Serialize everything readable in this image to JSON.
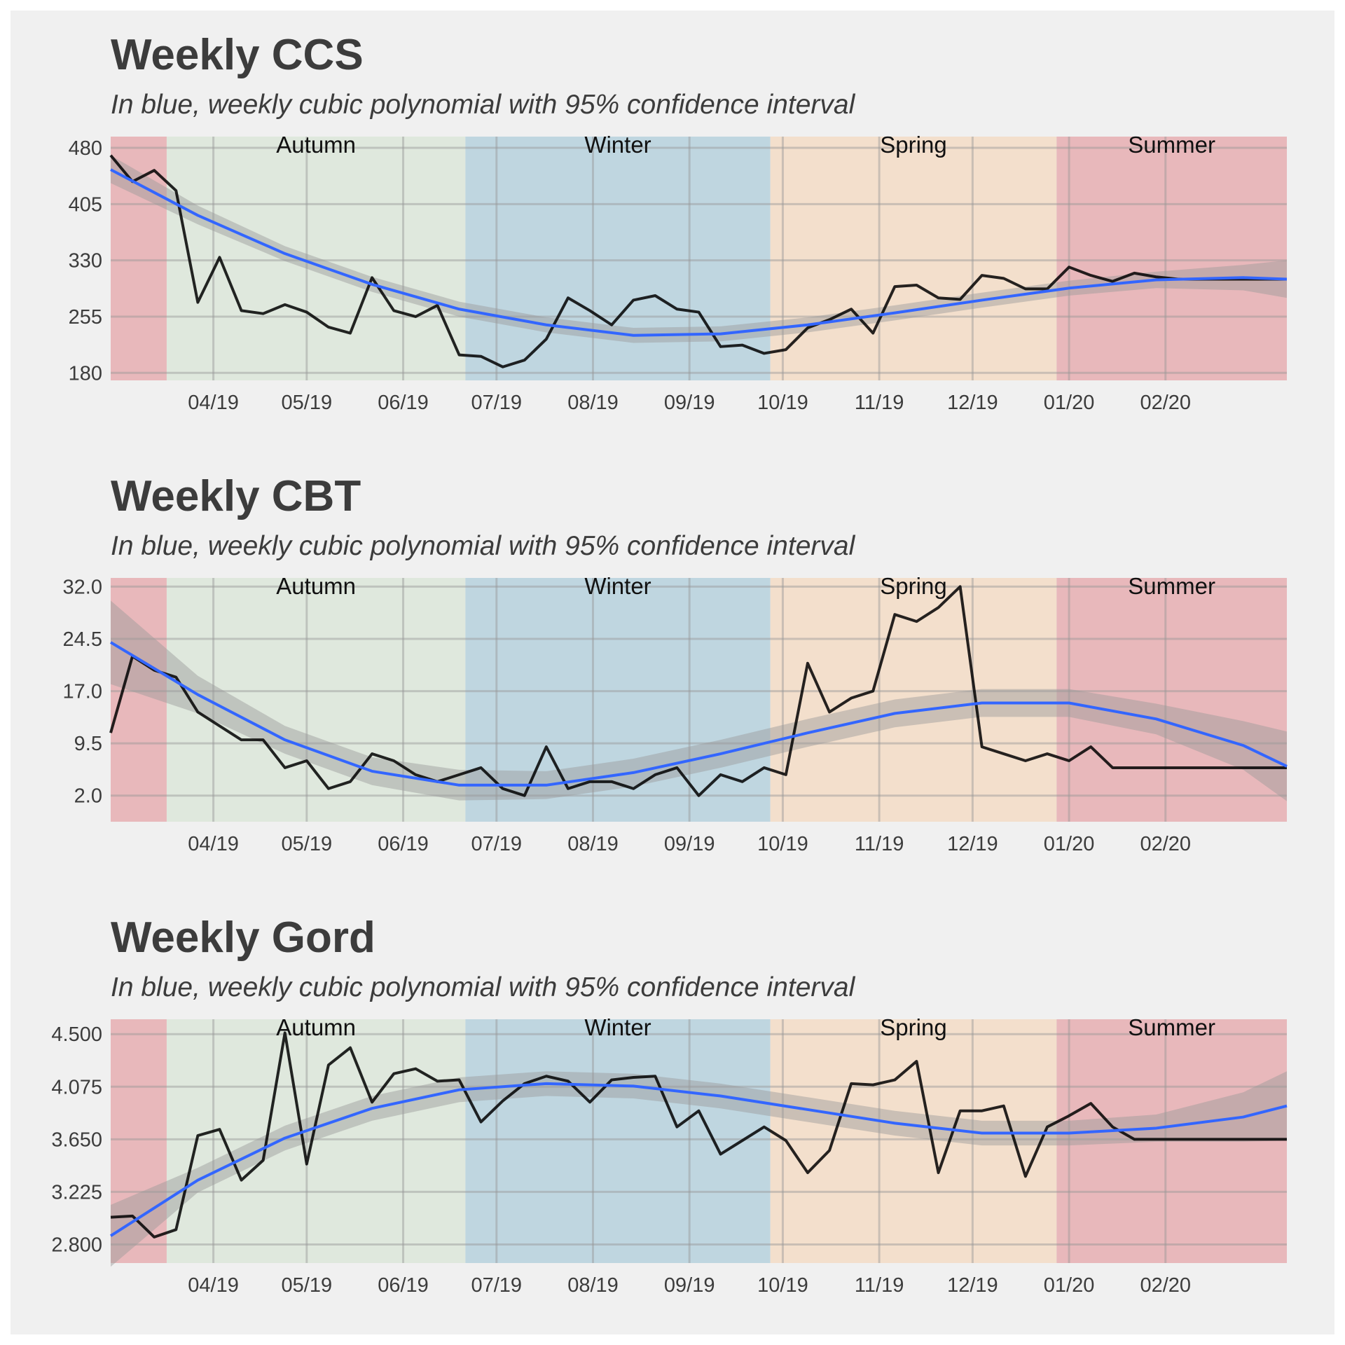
{
  "colors": {
    "background": "#f0f0f0",
    "series_line": "#000000",
    "fit_line": "#3366ff",
    "ribbon": "#999999",
    "grid": "#c8c8c8"
  },
  "seasons": [
    {
      "name": "",
      "start": "2019-02-27",
      "end": "2019-03-17",
      "color": "#e8b8bb"
    },
    {
      "name": "Autumn",
      "start": "2019-03-17",
      "end": "2019-06-21",
      "color": "#dfe8dd"
    },
    {
      "name": "Winter",
      "start": "2019-06-21",
      "end": "2019-09-27",
      "color": "#bfd6e0"
    },
    {
      "name": "Spring",
      "start": "2019-09-27",
      "end": "2019-12-28",
      "color": "#f3dfcc"
    },
    {
      "name": "Summer",
      "start": "2019-12-28",
      "end": "2020-03-11",
      "color": "#e8b8bb"
    }
  ],
  "x_range": [
    "2019-02-27",
    "2020-03-11"
  ],
  "x_ticks": [
    {
      "date": "2019-04-01",
      "label": "04/19"
    },
    {
      "date": "2019-05-01",
      "label": "05/19"
    },
    {
      "date": "2019-06-01",
      "label": "06/19"
    },
    {
      "date": "2019-07-01",
      "label": "07/19"
    },
    {
      "date": "2019-08-01",
      "label": "08/19"
    },
    {
      "date": "2019-09-01",
      "label": "09/19"
    },
    {
      "date": "2019-10-01",
      "label": "10/19"
    },
    {
      "date": "2019-11-01",
      "label": "11/19"
    },
    {
      "date": "2019-12-01",
      "label": "12/19"
    },
    {
      "date": "2020-01-01",
      "label": "01/20"
    },
    {
      "date": "2020-02-01",
      "label": "02/20"
    }
  ],
  "weeks": [
    "2019-02-27",
    "2019-03-06",
    "2019-03-13",
    "2019-03-20",
    "2019-03-27",
    "2019-04-03",
    "2019-04-10",
    "2019-04-17",
    "2019-04-24",
    "2019-05-01",
    "2019-05-08",
    "2019-05-15",
    "2019-05-22",
    "2019-05-29",
    "2019-06-05",
    "2019-06-12",
    "2019-06-19",
    "2019-06-26",
    "2019-07-03",
    "2019-07-10",
    "2019-07-17",
    "2019-07-24",
    "2019-07-31",
    "2019-08-07",
    "2019-08-14",
    "2019-08-21",
    "2019-08-28",
    "2019-09-04",
    "2019-09-11",
    "2019-09-18",
    "2019-09-25",
    "2019-10-02",
    "2019-10-09",
    "2019-10-16",
    "2019-10-23",
    "2019-10-30",
    "2019-11-06",
    "2019-11-13",
    "2019-11-20",
    "2019-11-27",
    "2019-12-04",
    "2019-12-11",
    "2019-12-18",
    "2019-12-25",
    "2020-01-01",
    "2020-01-08",
    "2020-01-15",
    "2020-01-22",
    "2020-01-29",
    "2020-02-05",
    "2020-02-12",
    "2020-02-19",
    "2020-02-26",
    "2020-03-04",
    "2020-03-11"
  ],
  "chart_data": [
    {
      "type": "line",
      "title": "Weekly CCS",
      "subtitle": "In blue, weekly cubic polynomial with 95% confidence interval",
      "ylim": [
        170,
        495
      ],
      "y_ticks": [
        {
          "value": 180,
          "label": "180"
        },
        {
          "value": 255,
          "label": "255"
        },
        {
          "value": 330,
          "label": "330"
        },
        {
          "value": 405,
          "label": "405"
        },
        {
          "value": 480,
          "label": "480"
        }
      ],
      "series": [
        {
          "values": [
            470,
            435,
            450,
            423,
            274,
            334,
            263,
            259,
            271,
            261,
            241,
            233,
            307,
            263,
            255,
            270,
            204,
            202,
            188,
            197,
            225,
            280,
            263,
            244,
            277,
            283,
            265,
            261,
            215,
            217,
            206,
            211,
            240,
            251,
            265,
            233,
            295,
            297,
            280,
            278,
            310,
            306,
            292,
            292,
            321,
            310,
            302,
            313,
            308,
            305,
            305,
            305,
            305,
            305,
            305
          ]
        }
      ],
      "fit": [
        {
          "x": "2019-02-27",
          "y": 451,
          "lo": 433,
          "hi": 470
        },
        {
          "x": "2019-03-27",
          "y": 390,
          "lo": 378,
          "hi": 403
        },
        {
          "x": "2019-04-24",
          "y": 339,
          "lo": 329,
          "hi": 349
        },
        {
          "x": "2019-05-22",
          "y": 298,
          "lo": 288,
          "hi": 308
        },
        {
          "x": "2019-06-19",
          "y": 265,
          "lo": 255,
          "hi": 275
        },
        {
          "x": "2019-07-17",
          "y": 244,
          "lo": 234,
          "hi": 254
        },
        {
          "x": "2019-08-14",
          "y": 230,
          "lo": 220,
          "hi": 240
        },
        {
          "x": "2019-09-11",
          "y": 232,
          "lo": 222,
          "hi": 242
        },
        {
          "x": "2019-10-09",
          "y": 244,
          "lo": 234,
          "hi": 254
        },
        {
          "x": "2019-11-06",
          "y": 260,
          "lo": 250,
          "hi": 270
        },
        {
          "x": "2019-12-04",
          "y": 277,
          "lo": 267,
          "hi": 287
        },
        {
          "x": "2020-01-01",
          "y": 293,
          "lo": 283,
          "hi": 303
        },
        {
          "x": "2020-01-29",
          "y": 304,
          "lo": 293,
          "hi": 315
        },
        {
          "x": "2020-02-26",
          "y": 307,
          "lo": 290,
          "hi": 324
        },
        {
          "x": "2020-03-11",
          "y": 305,
          "lo": 280,
          "hi": 330
        }
      ]
    },
    {
      "type": "line",
      "title": "Weekly CBT",
      "subtitle": "In blue, weekly cubic polynomial with 95% confidence interval",
      "ylim": [
        -1.75,
        33.25
      ],
      "y_ticks": [
        {
          "value": 2.0,
          "label": "2.0"
        },
        {
          "value": 9.5,
          "label": "9.5"
        },
        {
          "value": 17.0,
          "label": "17.0"
        },
        {
          "value": 24.5,
          "label": "24.5"
        },
        {
          "value": 32.0,
          "label": "32.0"
        }
      ],
      "series": [
        {
          "values": [
            11.0,
            22.0,
            20.0,
            19.0,
            14.0,
            12.0,
            10.0,
            10.0,
            6.0,
            7.0,
            3.0,
            4.0,
            8.0,
            7.0,
            5.0,
            4.0,
            5.0,
            6.0,
            3.0,
            2.0,
            9.0,
            3.0,
            4.0,
            4.0,
            3.0,
            5.0,
            6.0,
            2.0,
            5.0,
            4.0,
            6.0,
            5.0,
            21.0,
            14.0,
            16.0,
            17.0,
            28.0,
            27.0,
            29.0,
            32.0,
            9.0,
            8.0,
            7.0,
            8.0,
            7.0,
            9.0,
            6.0,
            6.0,
            6.0,
            6.0,
            6.0,
            6.0,
            6.0,
            6.0,
            6.0
          ]
        }
      ],
      "fit": [
        {
          "x": "2019-02-27",
          "y": 24.0,
          "lo": 18.0,
          "hi": 30.0
        },
        {
          "x": "2019-03-27",
          "y": 16.5,
          "lo": 13.8,
          "hi": 19.2
        },
        {
          "x": "2019-04-24",
          "y": 10.0,
          "lo": 8.0,
          "hi": 12.0
        },
        {
          "x": "2019-05-22",
          "y": 5.5,
          "lo": 3.5,
          "hi": 7.5
        },
        {
          "x": "2019-06-19",
          "y": 3.5,
          "lo": 1.3,
          "hi": 5.7
        },
        {
          "x": "2019-07-17",
          "y": 3.5,
          "lo": 1.5,
          "hi": 5.5
        },
        {
          "x": "2019-08-14",
          "y": 5.3,
          "lo": 3.3,
          "hi": 7.3
        },
        {
          "x": "2019-09-11",
          "y": 8.0,
          "lo": 6.0,
          "hi": 10.0
        },
        {
          "x": "2019-10-09",
          "y": 11.0,
          "lo": 9.0,
          "hi": 13.0
        },
        {
          "x": "2019-11-06",
          "y": 13.8,
          "lo": 11.8,
          "hi": 15.8
        },
        {
          "x": "2019-12-04",
          "y": 15.3,
          "lo": 13.3,
          "hi": 17.3
        },
        {
          "x": "2020-01-01",
          "y": 15.3,
          "lo": 13.3,
          "hi": 17.3
        },
        {
          "x": "2020-01-29",
          "y": 13.0,
          "lo": 10.8,
          "hi": 15.2
        },
        {
          "x": "2020-02-26",
          "y": 9.2,
          "lo": 5.7,
          "hi": 12.7
        },
        {
          "x": "2020-03-11",
          "y": 6.2,
          "lo": 1.2,
          "hi": 11.2
        }
      ]
    },
    {
      "type": "line",
      "title": "Weekly Gord",
      "subtitle": "In blue, weekly cubic polynomial with 95% confidence interval",
      "ylim": [
        2.65,
        4.62
      ],
      "y_ticks": [
        {
          "value": 2.8,
          "label": "2.800"
        },
        {
          "value": 3.225,
          "label": "3.225"
        },
        {
          "value": 3.65,
          "label": "3.650"
        },
        {
          "value": 4.075,
          "label": "4.075"
        },
        {
          "value": 4.5,
          "label": "4.500"
        }
      ],
      "series": [
        {
          "values": [
            3.02,
            3.03,
            2.86,
            2.92,
            3.68,
            3.73,
            3.32,
            3.48,
            4.51,
            3.45,
            4.25,
            4.39,
            3.95,
            4.18,
            4.22,
            4.12,
            4.13,
            3.79,
            3.96,
            4.1,
            4.16,
            4.12,
            3.95,
            4.13,
            4.15,
            4.16,
            3.75,
            3.88,
            3.53,
            3.64,
            3.75,
            3.64,
            3.38,
            3.56,
            4.1,
            4.09,
            4.13,
            4.28,
            3.38,
            3.88,
            3.88,
            3.92,
            3.35,
            3.75,
            3.84,
            3.94,
            3.75,
            3.65,
            3.65,
            3.65,
            3.65,
            3.65,
            3.65,
            3.65,
            3.65
          ]
        }
      ],
      "fit": [
        {
          "x": "2019-02-27",
          "y": 2.87,
          "lo": 2.62,
          "hi": 3.12
        },
        {
          "x": "2019-03-27",
          "y": 3.32,
          "lo": 3.22,
          "hi": 3.42
        },
        {
          "x": "2019-04-24",
          "y": 3.66,
          "lo": 3.56,
          "hi": 3.76
        },
        {
          "x": "2019-05-22",
          "y": 3.9,
          "lo": 3.8,
          "hi": 4.0
        },
        {
          "x": "2019-06-19",
          "y": 4.05,
          "lo": 3.95,
          "hi": 4.15
        },
        {
          "x": "2019-07-17",
          "y": 4.1,
          "lo": 4.0,
          "hi": 4.2
        },
        {
          "x": "2019-08-14",
          "y": 4.08,
          "lo": 3.98,
          "hi": 4.18
        },
        {
          "x": "2019-09-11",
          "y": 4.0,
          "lo": 3.9,
          "hi": 4.1
        },
        {
          "x": "2019-10-09",
          "y": 3.89,
          "lo": 3.79,
          "hi": 3.99
        },
        {
          "x": "2019-11-06",
          "y": 3.78,
          "lo": 3.68,
          "hi": 3.88
        },
        {
          "x": "2019-12-04",
          "y": 3.7,
          "lo": 3.6,
          "hi": 3.8
        },
        {
          "x": "2020-01-01",
          "y": 3.7,
          "lo": 3.6,
          "hi": 3.8
        },
        {
          "x": "2020-01-29",
          "y": 3.74,
          "lo": 3.63,
          "hi": 3.85
        },
        {
          "x": "2020-02-26",
          "y": 3.83,
          "lo": 3.63,
          "hi": 4.03
        },
        {
          "x": "2020-03-11",
          "y": 3.92,
          "lo": 3.64,
          "hi": 4.2
        }
      ]
    }
  ]
}
